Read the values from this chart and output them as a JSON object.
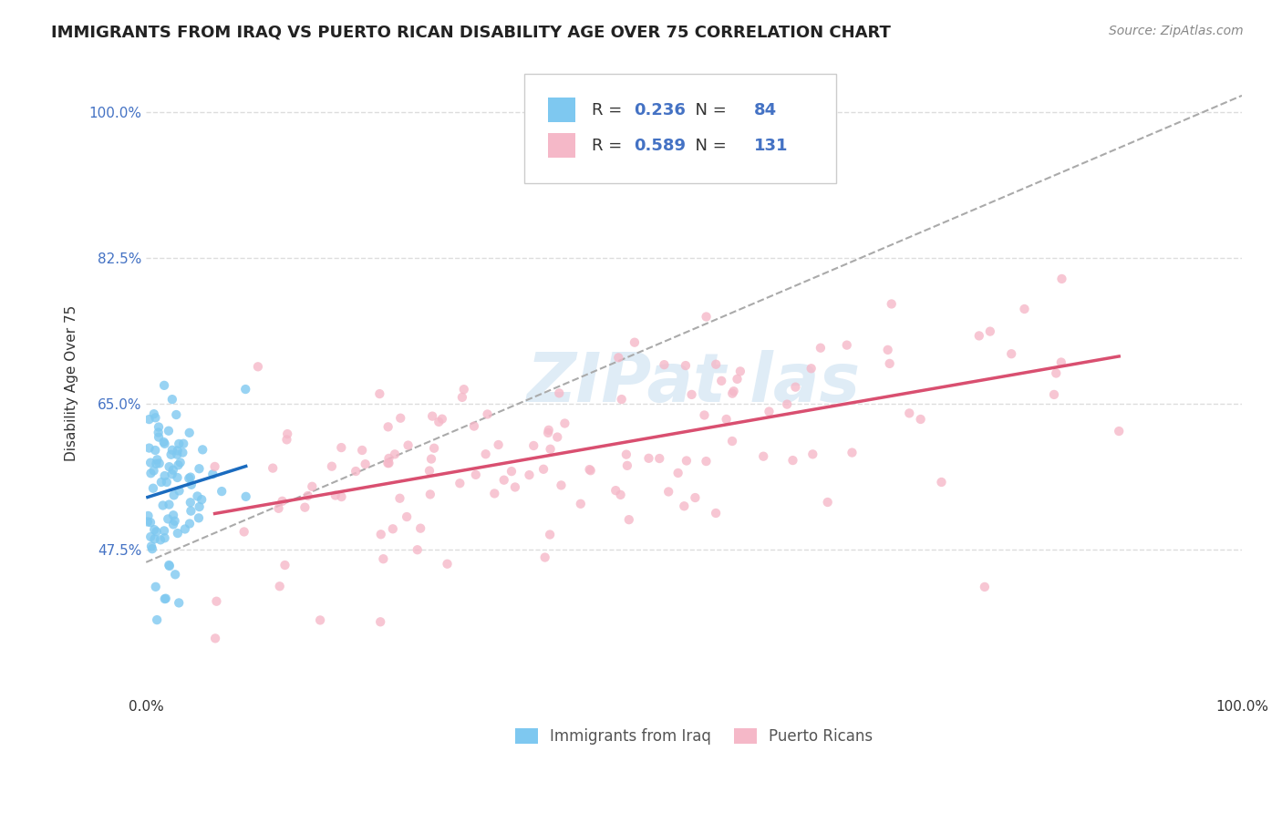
{
  "title": "IMMIGRANTS FROM IRAQ VS PUERTO RICAN DISABILITY AGE OVER 75 CORRELATION CHART",
  "source": "Source: ZipAtlas.com",
  "ylabel": "Disability Age Over 75",
  "xlim": [
    0.0,
    1.0
  ],
  "ylim": [
    0.3,
    1.05
  ],
  "ytick_positions": [
    0.475,
    0.65,
    0.825,
    1.0
  ],
  "ytick_labels": [
    "47.5%",
    "65.0%",
    "82.5%",
    "100.0%"
  ],
  "blue_color": "#7ec8f0",
  "pink_color": "#f5b8c8",
  "blue_line_color": "#1a6bbf",
  "pink_line_color": "#d94f70",
  "gray_dash_color": "#aaaaaa",
  "R_blue": 0.236,
  "N_blue": 84,
  "R_pink": 0.589,
  "N_pink": 131,
  "legend_labels": [
    "Immigrants from Iraq",
    "Puerto Ricans"
  ],
  "background_color": "#ffffff",
  "grid_color": "#dddddd",
  "title_fontsize": 13,
  "axis_label_fontsize": 11,
  "tick_fontsize": 11,
  "source_fontsize": 10
}
